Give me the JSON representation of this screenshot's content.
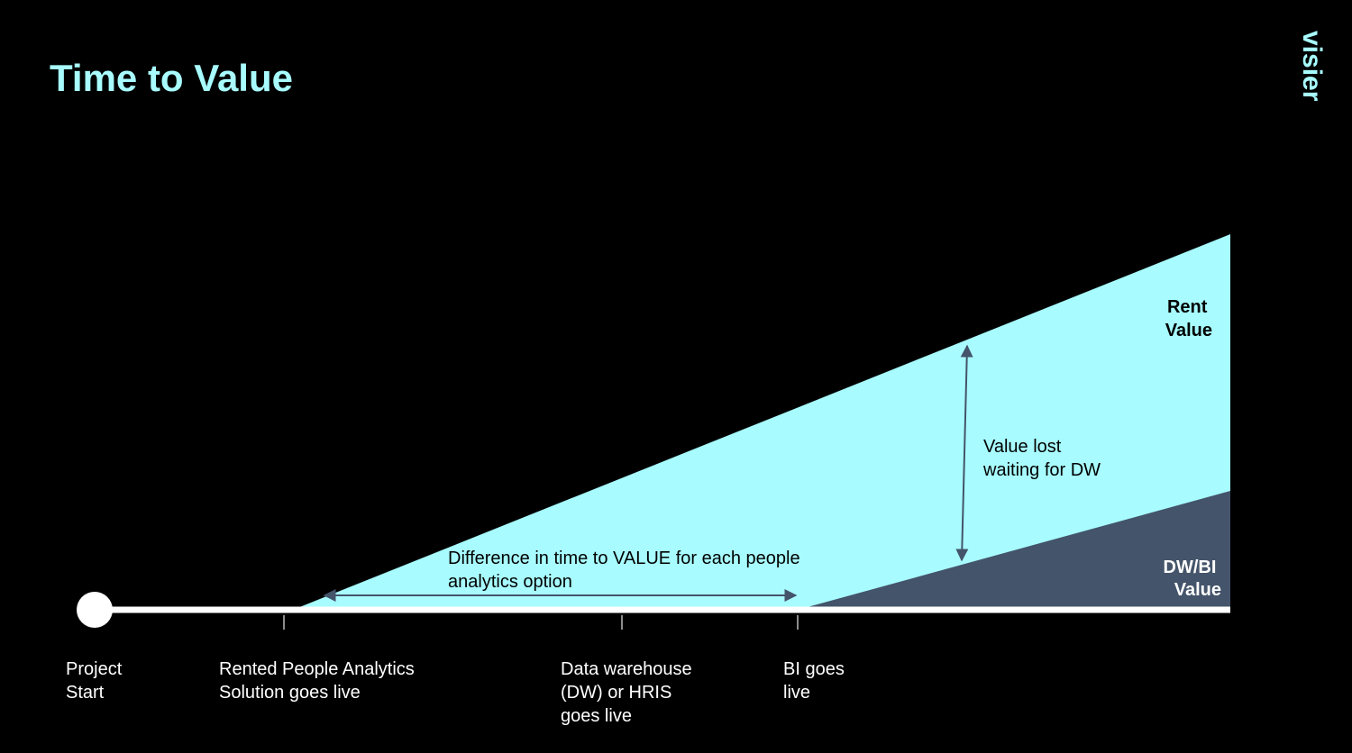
{
  "header": {
    "title": "Time to Value",
    "logo": "visier"
  },
  "areas": {
    "rent": [
      "Rent",
      "Value"
    ],
    "dwbi": [
      "DW/BI",
      "Value"
    ]
  },
  "annotations": {
    "value_lost": [
      "Value lost",
      "waiting for DW"
    ],
    "difference": [
      "Difference in time to VALUE for each people",
      "analytics option"
    ]
  },
  "milestones": [
    [
      "Project",
      "Start"
    ],
    [
      "Rented People Analytics",
      "Solution goes live"
    ],
    [
      "Data warehouse",
      "(DW) or HRIS",
      "goes live"
    ],
    [
      "BI goes",
      "live"
    ]
  ]
}
